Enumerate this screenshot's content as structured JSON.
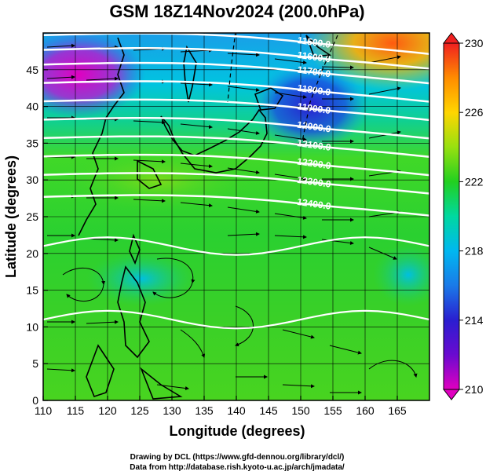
{
  "title": "GSM 18Z14Nov2024 (200.0hPa)",
  "chart_data": {
    "type": "heatmap",
    "title": "GSM 18Z14Nov2024 (200.0hPa)",
    "xlabel": "Longitude (degrees)",
    "ylabel": "Latitude (degrees)",
    "xlim": [
      110,
      170
    ],
    "ylim": [
      0,
      50
    ],
    "x_ticks": [
      "110",
      "115",
      "120",
      "125",
      "130",
      "135",
      "140",
      "145",
      "150",
      "155",
      "160",
      "165"
    ],
    "y_ticks": [
      "0",
      "5",
      "10",
      "15",
      "20",
      "25",
      "30",
      "35",
      "40",
      "45"
    ],
    "grid": true,
    "colorbar": {
      "range": [
        210,
        230
      ],
      "ticks": [
        "210",
        "214",
        "218",
        "222",
        "226",
        "230"
      ],
      "colors": [
        "#e000c0",
        "#2a1ed0",
        "#00b8f0",
        "#22d020",
        "#ffd500",
        "#f02020"
      ]
    },
    "contours": [
      {
        "label": "11500.0",
        "lat_at_150": 47.5
      },
      {
        "label": "11600.0",
        "lat_at_150": 45.5
      },
      {
        "label": "11700.0",
        "lat_at_150": 43.5
      },
      {
        "label": "11800.0",
        "lat_at_150": 41.0
      },
      {
        "label": "11900.0",
        "lat_at_150": 38.5
      },
      {
        "label": "12000.0",
        "lat_at_150": 36.0
      },
      {
        "label": "12100.0",
        "lat_at_150": 33.5
      },
      {
        "label": "12200.0",
        "lat_at_150": 31.0
      },
      {
        "label": "12300.0",
        "lat_at_150": 28.5
      },
      {
        "label": "12400.0",
        "lat_at_150": 25.5
      }
    ]
  },
  "credits": {
    "line1": "Drawing by DCL (https://www.gfd-dennou.org/library/dcl/)",
    "line2": "Data from http://database.rish.kyoto-u.ac.jp/arch/jmadata/"
  }
}
